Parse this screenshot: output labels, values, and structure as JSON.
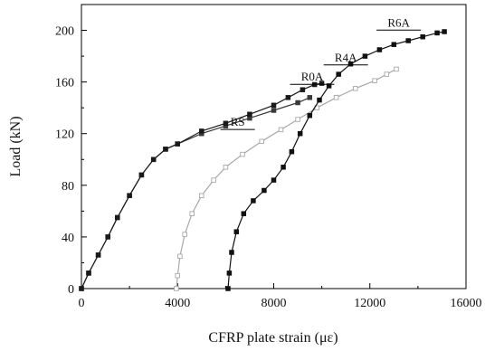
{
  "chart_data": {
    "type": "line",
    "title": "",
    "xlabel": "CFRP plate strain (με)",
    "ylabel": "Load (kN)",
    "xlim": [
      0,
      16000
    ],
    "ylim": [
      0,
      220
    ],
    "xticks": [
      0,
      4000,
      8000,
      12000,
      16000
    ],
    "yticks": [
      0,
      40,
      80,
      120,
      160,
      200
    ],
    "grid": false,
    "legend": "none",
    "series": [
      {
        "name": "RS",
        "color": "#3a3a3a",
        "marker": "square-filled",
        "x": [
          0,
          300,
          700,
          1100,
          1500,
          2000,
          2500,
          3000,
          3500,
          4000,
          5000,
          6000,
          7000,
          8000,
          9000,
          9500
        ],
        "y": [
          0,
          12,
          26,
          40,
          55,
          72,
          88,
          100,
          108,
          112,
          120,
          126,
          132,
          138,
          144,
          148
        ]
      },
      {
        "name": "R0A",
        "color": "#1a1a1a",
        "marker": "square-filled",
        "x": [
          0,
          300,
          700,
          1100,
          1500,
          2000,
          2500,
          3000,
          3500,
          4000,
          5000,
          6000,
          7000,
          8000,
          8600,
          9200,
          9700,
          10000
        ],
        "y": [
          0,
          12,
          26,
          40,
          55,
          72,
          88,
          100,
          108,
          112,
          122,
          128,
          135,
          142,
          148,
          154,
          158,
          159
        ]
      },
      {
        "name": "R4A",
        "color": "#a8a8a8",
        "marker": "square-open",
        "x": [
          3950,
          4000,
          4100,
          4300,
          4600,
          5000,
          5500,
          6000,
          6700,
          7500,
          8300,
          9000,
          9800,
          10600,
          11400,
          12200,
          12700,
          13100
        ],
        "y": [
          0,
          10,
          25,
          42,
          58,
          72,
          84,
          94,
          104,
          114,
          123,
          131,
          140,
          148,
          155,
          161,
          166,
          170
        ]
      },
      {
        "name": "R6A",
        "color": "#111111",
        "marker": "square-filled",
        "x": [
          6100,
          6150,
          6250,
          6450,
          6750,
          7150,
          7600,
          8000,
          8400,
          8750,
          9100,
          9500,
          9900,
          10300,
          10700,
          11200,
          11800,
          12400,
          13000,
          13600,
          14200,
          14800,
          15100
        ],
        "y": [
          0,
          12,
          28,
          44,
          58,
          68,
          76,
          84,
          94,
          106,
          120,
          134,
          146,
          157,
          166,
          174,
          180,
          185,
          189,
          192,
          195,
          198,
          199
        ]
      }
    ],
    "annotations": [
      {
        "text": "RS",
        "x": 6500,
        "y": 126
      },
      {
        "text": "R0A",
        "x": 9600,
        "y": 161
      },
      {
        "text": "R4A",
        "x": 11000,
        "y": 176
      },
      {
        "text": "R6A",
        "x": 13200,
        "y": 203
      }
    ]
  }
}
